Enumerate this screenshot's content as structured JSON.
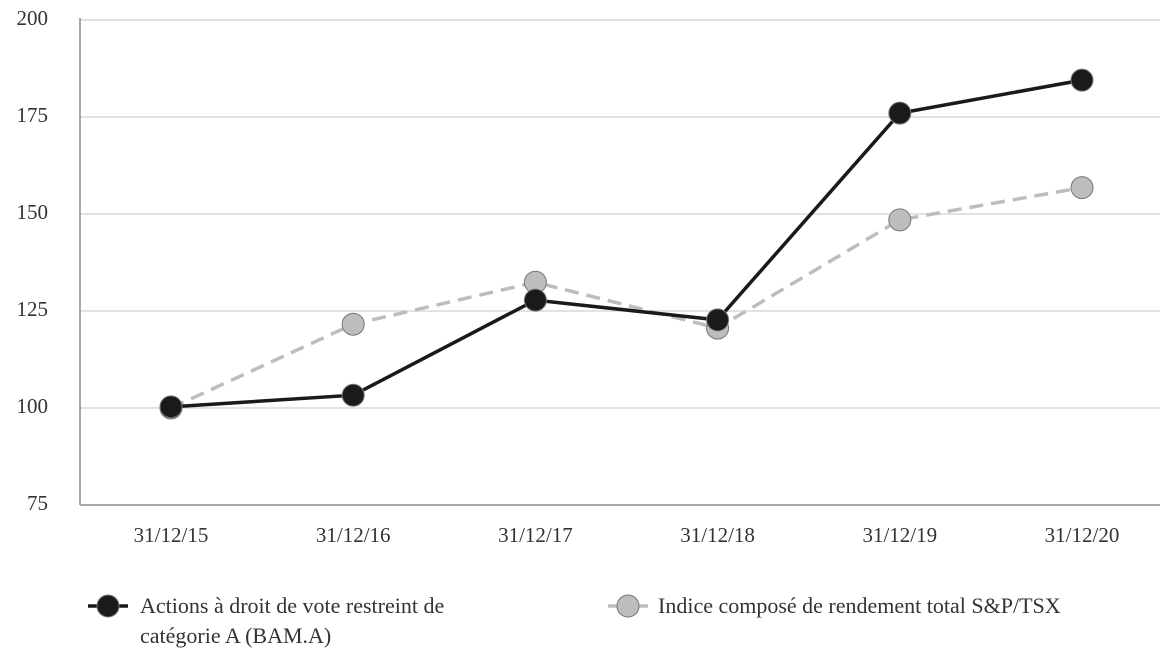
{
  "chart_data": {
    "type": "line",
    "categories": [
      "31/12/15",
      "31/12/16",
      "31/12/17",
      "31/12/18",
      "31/12/19",
      "31/12/20"
    ],
    "series": [
      {
        "name": "Actions à droit de vote restreint de catégorie A (BAM.A)",
        "color": "#1a1a1a",
        "dashed": false,
        "values": [
          100.3,
          103.3,
          127.8,
          122.7,
          176,
          184.5
        ]
      },
      {
        "name": "Indice composé de rendement total S&P/TSX",
        "color": "#bdbdbd",
        "dashed": true,
        "values": [
          100,
          121.6,
          132.4,
          120.6,
          148.5,
          156.8
        ]
      }
    ],
    "ylim": [
      75,
      200
    ],
    "yticks": [
      75,
      100,
      125,
      150,
      175,
      200
    ],
    "grid": true
  }
}
